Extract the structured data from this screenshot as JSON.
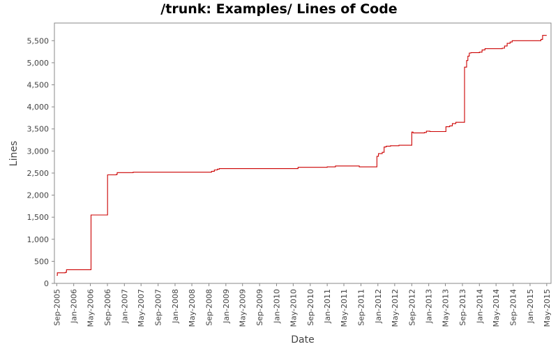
{
  "chart_data": {
    "type": "line",
    "title": "/trunk: Examples/ Lines of Code",
    "xlabel": "Date",
    "ylabel": "Lines",
    "ylim": [
      0,
      5900
    ],
    "xlim": [
      "2005-08-15",
      "2015-06-01"
    ],
    "y_ticks": [
      0,
      500,
      1000,
      1500,
      2000,
      2500,
      3000,
      3500,
      4000,
      4500,
      5000,
      5500
    ],
    "y_tick_labels": [
      "0",
      "500",
      "1,000",
      "1,500",
      "2,000",
      "2,500",
      "3,000",
      "3,500",
      "4,000",
      "4,500",
      "5,000",
      "5,500"
    ],
    "x_ticks": [
      "2005-09-01",
      "2006-01-01",
      "2006-05-01",
      "2006-09-01",
      "2007-01-01",
      "2007-05-01",
      "2007-09-01",
      "2008-01-01",
      "2008-05-01",
      "2008-09-01",
      "2009-01-01",
      "2009-05-01",
      "2009-09-01",
      "2010-01-01",
      "2010-05-01",
      "2010-09-01",
      "2011-01-01",
      "2011-05-01",
      "2011-09-01",
      "2012-01-01",
      "2012-05-01",
      "2012-09-01",
      "2013-01-01",
      "2013-05-01",
      "2013-09-01",
      "2014-01-01",
      "2014-05-01",
      "2014-09-01",
      "2015-01-01",
      "2015-05-01"
    ],
    "x_tick_labels": [
      "Sep-2005",
      "Jan-2006",
      "May-2006",
      "Sep-2006",
      "Jan-2007",
      "May-2007",
      "Sep-2007",
      "Jan-2008",
      "May-2008",
      "Sep-2008",
      "Jan-2009",
      "May-2009",
      "Sep-2009",
      "Jan-2010",
      "May-2010",
      "Sep-2010",
      "Jan-2011",
      "May-2011",
      "Sep-2011",
      "Jan-2012",
      "May-2012",
      "Sep-2012",
      "Jan-2013",
      "May-2013",
      "Sep-2013",
      "Jan-2014",
      "May-2014",
      "Sep-2014",
      "Jan-2015",
      "May-2015"
    ],
    "grid": false,
    "step": true,
    "series": [
      {
        "color": "#cc0000",
        "points": [
          [
            "2005-09-01",
            180
          ],
          [
            "2005-09-05",
            240
          ],
          [
            "2005-11-01",
            250
          ],
          [
            "2005-11-10",
            310
          ],
          [
            "2006-05-05",
            310
          ],
          [
            "2006-05-06",
            1550
          ],
          [
            "2006-09-01",
            1550
          ],
          [
            "2006-09-02",
            2460
          ],
          [
            "2006-11-05",
            2470
          ],
          [
            "2006-11-10",
            2510
          ],
          [
            "2007-03-01",
            2510
          ],
          [
            "2007-03-05",
            2520
          ],
          [
            "2008-09-10",
            2520
          ],
          [
            "2008-09-20",
            2540
          ],
          [
            "2008-10-10",
            2570
          ],
          [
            "2008-11-01",
            2590
          ],
          [
            "2008-11-15",
            2600
          ],
          [
            "2010-06-01",
            2600
          ],
          [
            "2010-06-05",
            2630
          ],
          [
            "2011-01-01",
            2640
          ],
          [
            "2011-03-01",
            2660
          ],
          [
            "2011-08-15",
            2660
          ],
          [
            "2011-08-20",
            2640
          ],
          [
            "2011-12-20",
            2640
          ],
          [
            "2011-12-25",
            2880
          ],
          [
            "2012-01-05",
            2940
          ],
          [
            "2012-02-01",
            2970
          ],
          [
            "2012-02-15",
            3090
          ],
          [
            "2012-03-01",
            3110
          ],
          [
            "2012-04-01",
            3120
          ],
          [
            "2012-06-01",
            3130
          ],
          [
            "2012-08-25",
            3130
          ],
          [
            "2012-09-01",
            3430
          ],
          [
            "2012-09-10",
            3410
          ],
          [
            "2012-12-01",
            3420
          ],
          [
            "2012-12-15",
            3450
          ],
          [
            "2013-01-10",
            3440
          ],
          [
            "2013-05-01",
            3440
          ],
          [
            "2013-05-05",
            3550
          ],
          [
            "2013-06-01",
            3570
          ],
          [
            "2013-06-20",
            3620
          ],
          [
            "2013-07-15",
            3650
          ],
          [
            "2013-09-15",
            3650
          ],
          [
            "2013-09-16",
            4900
          ],
          [
            "2013-10-01",
            5050
          ],
          [
            "2013-10-10",
            5150
          ],
          [
            "2013-10-20",
            5220
          ],
          [
            "2013-11-01",
            5230
          ],
          [
            "2014-01-01",
            5240
          ],
          [
            "2014-01-20",
            5290
          ],
          [
            "2014-02-10",
            5320
          ],
          [
            "2014-04-01",
            5320
          ],
          [
            "2014-06-15",
            5330
          ],
          [
            "2014-07-01",
            5380
          ],
          [
            "2014-07-20",
            5440
          ],
          [
            "2014-08-10",
            5470
          ],
          [
            "2014-08-25",
            5500
          ],
          [
            "2015-03-01",
            5500
          ],
          [
            "2015-03-20",
            5530
          ],
          [
            "2015-04-01",
            5620
          ],
          [
            "2015-05-01",
            5620
          ]
        ]
      }
    ]
  }
}
